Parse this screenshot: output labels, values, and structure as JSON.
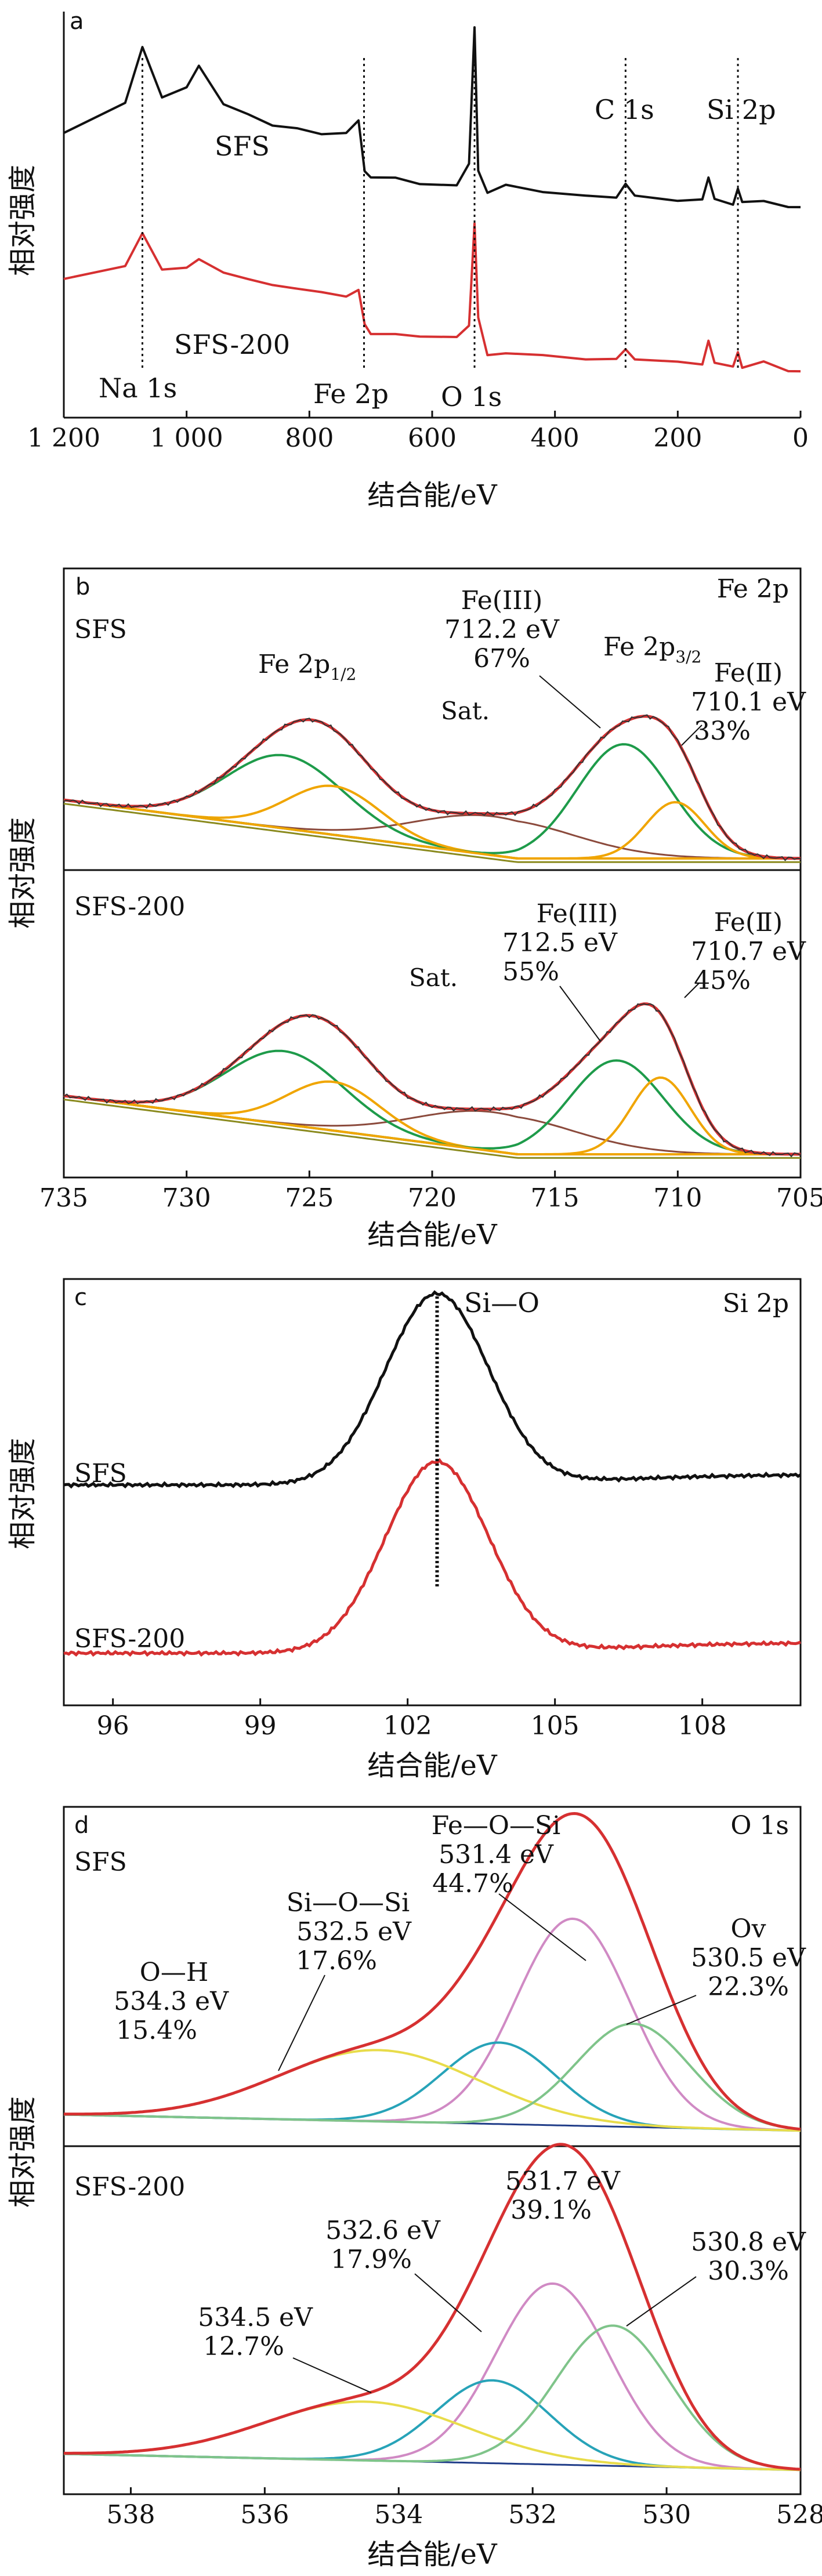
{
  "chart_data": [
    {
      "panel": "a",
      "type": "line",
      "xlabel": "结合能/eV",
      "ylabel": "相对强度",
      "xlim": [
        1200,
        0
      ],
      "reversed_x": true,
      "xticks": [
        1200,
        1000,
        800,
        600,
        400,
        200,
        0
      ],
      "xtick_labels": [
        "1 200",
        "1 000",
        "800",
        "600",
        "400",
        "200",
        "0"
      ],
      "series": [
        {
          "name": "SFS",
          "color": "#111111",
          "x": [
            1200,
            1100,
            1072,
            1040,
            1000,
            980,
            940,
            900,
            860,
            820,
            780,
            740,
            720,
            710,
            700,
            660,
            620,
            560,
            540,
            531,
            525,
            510,
            480,
            420,
            350,
            300,
            285,
            270,
            200,
            160,
            150,
            140,
            110,
            102,
            95,
            60,
            20,
            0
          ],
          "y": [
            0.72,
            0.8,
            0.95,
            0.82,
            0.84,
            0.9,
            0.8,
            0.77,
            0.74,
            0.73,
            0.72,
            0.72,
            0.75,
            0.62,
            0.6,
            0.6,
            0.58,
            0.58,
            0.64,
            1.0,
            0.62,
            0.56,
            0.58,
            0.56,
            0.55,
            0.55,
            0.58,
            0.55,
            0.54,
            0.54,
            0.6,
            0.54,
            0.53,
            0.57,
            0.53,
            0.54,
            0.52,
            0.52
          ]
        },
        {
          "name": "SFS-200",
          "color": "#d63031",
          "x": [
            1200,
            1100,
            1072,
            1040,
            1000,
            980,
            940,
            900,
            860,
            820,
            780,
            740,
            720,
            710,
            700,
            660,
            620,
            560,
            540,
            531,
            525,
            510,
            480,
            420,
            350,
            300,
            285,
            270,
            200,
            160,
            150,
            140,
            110,
            102,
            95,
            60,
            20,
            0
          ],
          "y": [
            0.33,
            0.36,
            0.45,
            0.35,
            0.36,
            0.38,
            0.34,
            0.33,
            0.31,
            0.3,
            0.29,
            0.28,
            0.3,
            0.2,
            0.18,
            0.18,
            0.17,
            0.17,
            0.2,
            0.48,
            0.22,
            0.12,
            0.13,
            0.12,
            0.11,
            0.11,
            0.14,
            0.11,
            0.1,
            0.1,
            0.16,
            0.1,
            0.09,
            0.13,
            0.09,
            0.1,
            0.08,
            0.08
          ]
        }
      ],
      "markers": [
        {
          "label": "Na 1s",
          "x": 1072
        },
        {
          "label": "Fe 2p",
          "x": 711
        },
        {
          "label": "O 1s",
          "x": 531
        },
        {
          "label": "C 1s",
          "x": 285
        },
        {
          "label": "Si 2p",
          "x": 102
        }
      ]
    },
    {
      "panel": "b",
      "type": "line",
      "title": "Fe 2p",
      "xlabel": "结合能/eV",
      "ylabel": "相对强度",
      "xlim": [
        735,
        705
      ],
      "reversed_x": true,
      "xticks": [
        735,
        730,
        725,
        720,
        715,
        710,
        705
      ],
      "subplots": [
        {
          "name": "SFS",
          "peaks": [
            {
              "label": "Fe(III)",
              "center": 712.2,
              "percent": 67
            },
            {
              "label": "Fe(Ⅱ)",
              "center": 710.1,
              "percent": 33
            }
          ],
          "annotations": [
            "Fe 2p1/2",
            "Fe 2p3/2",
            "Sat."
          ]
        },
        {
          "name": "SFS-200",
          "peaks": [
            {
              "label": "Fe(III)",
              "center": 712.5,
              "percent": 55
            },
            {
              "label": "Fe(Ⅱ)",
              "center": 710.7,
              "percent": 45
            }
          ],
          "annotations": [
            "Sat."
          ]
        }
      ]
    },
    {
      "panel": "c",
      "type": "line",
      "title": "Si 2p",
      "xlabel": "结合能/eV",
      "ylabel": "相对强度",
      "xlim": [
        95,
        110
      ],
      "xticks": [
        96,
        99,
        102,
        105,
        108
      ],
      "peak_label": "Si—O",
      "peak_position": 102.6,
      "series": [
        {
          "name": "SFS",
          "color": "#111111",
          "center": 102.6
        },
        {
          "name": "SFS-200",
          "color": "#d63031",
          "center": 102.6
        }
      ]
    },
    {
      "panel": "d",
      "type": "line",
      "title": "O 1s",
      "xlabel": "结合能/eV",
      "ylabel": "相对强度",
      "xlim": [
        539,
        528
      ],
      "reversed_x": true,
      "xticks": [
        538,
        536,
        534,
        532,
        530,
        528
      ],
      "subplots": [
        {
          "name": "SFS",
          "peaks": [
            {
              "label": "Fe—O—Si",
              "center": 531.4,
              "percent": 44.7
            },
            {
              "label": "Si—O—Si",
              "center": 532.5,
              "percent": 17.6
            },
            {
              "label": "O—H",
              "center": 534.3,
              "percent": 15.4
            },
            {
              "label": "Ov",
              "center": 530.5,
              "percent": 22.3
            }
          ]
        },
        {
          "name": "SFS-200",
          "peaks": [
            {
              "center": 531.7,
              "percent": 39.1
            },
            {
              "center": 532.6,
              "percent": 17.9
            },
            {
              "center": 534.5,
              "percent": 12.7
            },
            {
              "center": 530.8,
              "percent": 30.3
            }
          ]
        }
      ]
    }
  ],
  "text": {
    "panel_a": {
      "letter": "a",
      "ylabel": "相对强度",
      "xlabel": "结合能/eV",
      "label_sfs": "SFS",
      "label_sfs200": "SFS-200",
      "na": "Na 1s",
      "fe": "Fe 2p",
      "o": "O 1s",
      "c": "C 1s",
      "si": "Si 2p"
    },
    "panel_b": {
      "letter": "b",
      "title": "Fe 2p",
      "ylabel": "相对强度",
      "xlabel": "结合能/eV",
      "sfs": "SFS",
      "sfs200": "SFS-200",
      "fe2p12": "Fe 2p",
      "fe2p12_sub": "1/2",
      "fe2p32": "Fe 2p",
      "fe2p32_sub": "3/2",
      "sat": "Sat.",
      "top_fe3": "Fe(III)",
      "top_fe3_ev": "712.2 eV",
      "top_fe3_pct": "67%",
      "top_fe2": "Fe(Ⅱ)",
      "top_fe2_ev": "710.1 eV",
      "top_fe2_pct": "33%",
      "bot_fe3": "Fe(III)",
      "bot_fe3_ev": "712.5 eV",
      "bot_fe3_pct": "55%",
      "bot_fe2": "Fe(Ⅱ)",
      "bot_fe2_ev": "710.7 eV",
      "bot_fe2_pct": "45%"
    },
    "panel_c": {
      "letter": "c",
      "title": "Si 2p",
      "ylabel": "相对强度",
      "xlabel": "结合能/eV",
      "sfs": "SFS",
      "sfs200": "SFS-200",
      "peak": "Si—O"
    },
    "panel_d": {
      "letter": "d",
      "title": "O 1s",
      "ylabel": "相对强度",
      "xlabel": "结合能/eV",
      "sfs": "SFS",
      "sfs200": "SFS-200",
      "top_feosi": "Fe—O—Si",
      "top_feosi_ev": "531.4 eV",
      "top_feosi_pct": "44.7%",
      "top_siosi": "Si—O—Si",
      "top_siosi_ev": "532.5 eV",
      "top_siosi_pct": "17.6%",
      "top_oh": "O—H",
      "top_oh_ev": "534.3 eV",
      "top_oh_pct": "15.4%",
      "top_ov": "Ov",
      "top_ov_ev": "530.5 eV",
      "top_ov_pct": "22.3%",
      "bot_a_ev": "531.7 eV",
      "bot_a_pct": "39.1%",
      "bot_b_ev": "532.6 eV",
      "bot_b_pct": "17.9%",
      "bot_c_ev": "534.5 eV",
      "bot_c_pct": "12.7%",
      "bot_d_ev": "530.8 eV",
      "bot_d_pct": "30.3%"
    }
  },
  "colors": {
    "black": "#111111",
    "red": "#d63031",
    "green": "#1e9b4a",
    "orange": "#f0a500",
    "brown": "#8b4a3c",
    "olive": "#8a8a1e",
    "blue": "#2a5db0",
    "pink": "#d08ac4",
    "teal": "#27a3b8",
    "yellow": "#e8dc4a",
    "lightgreen": "#7fc48a",
    "darkblue": "#1f3c88"
  }
}
